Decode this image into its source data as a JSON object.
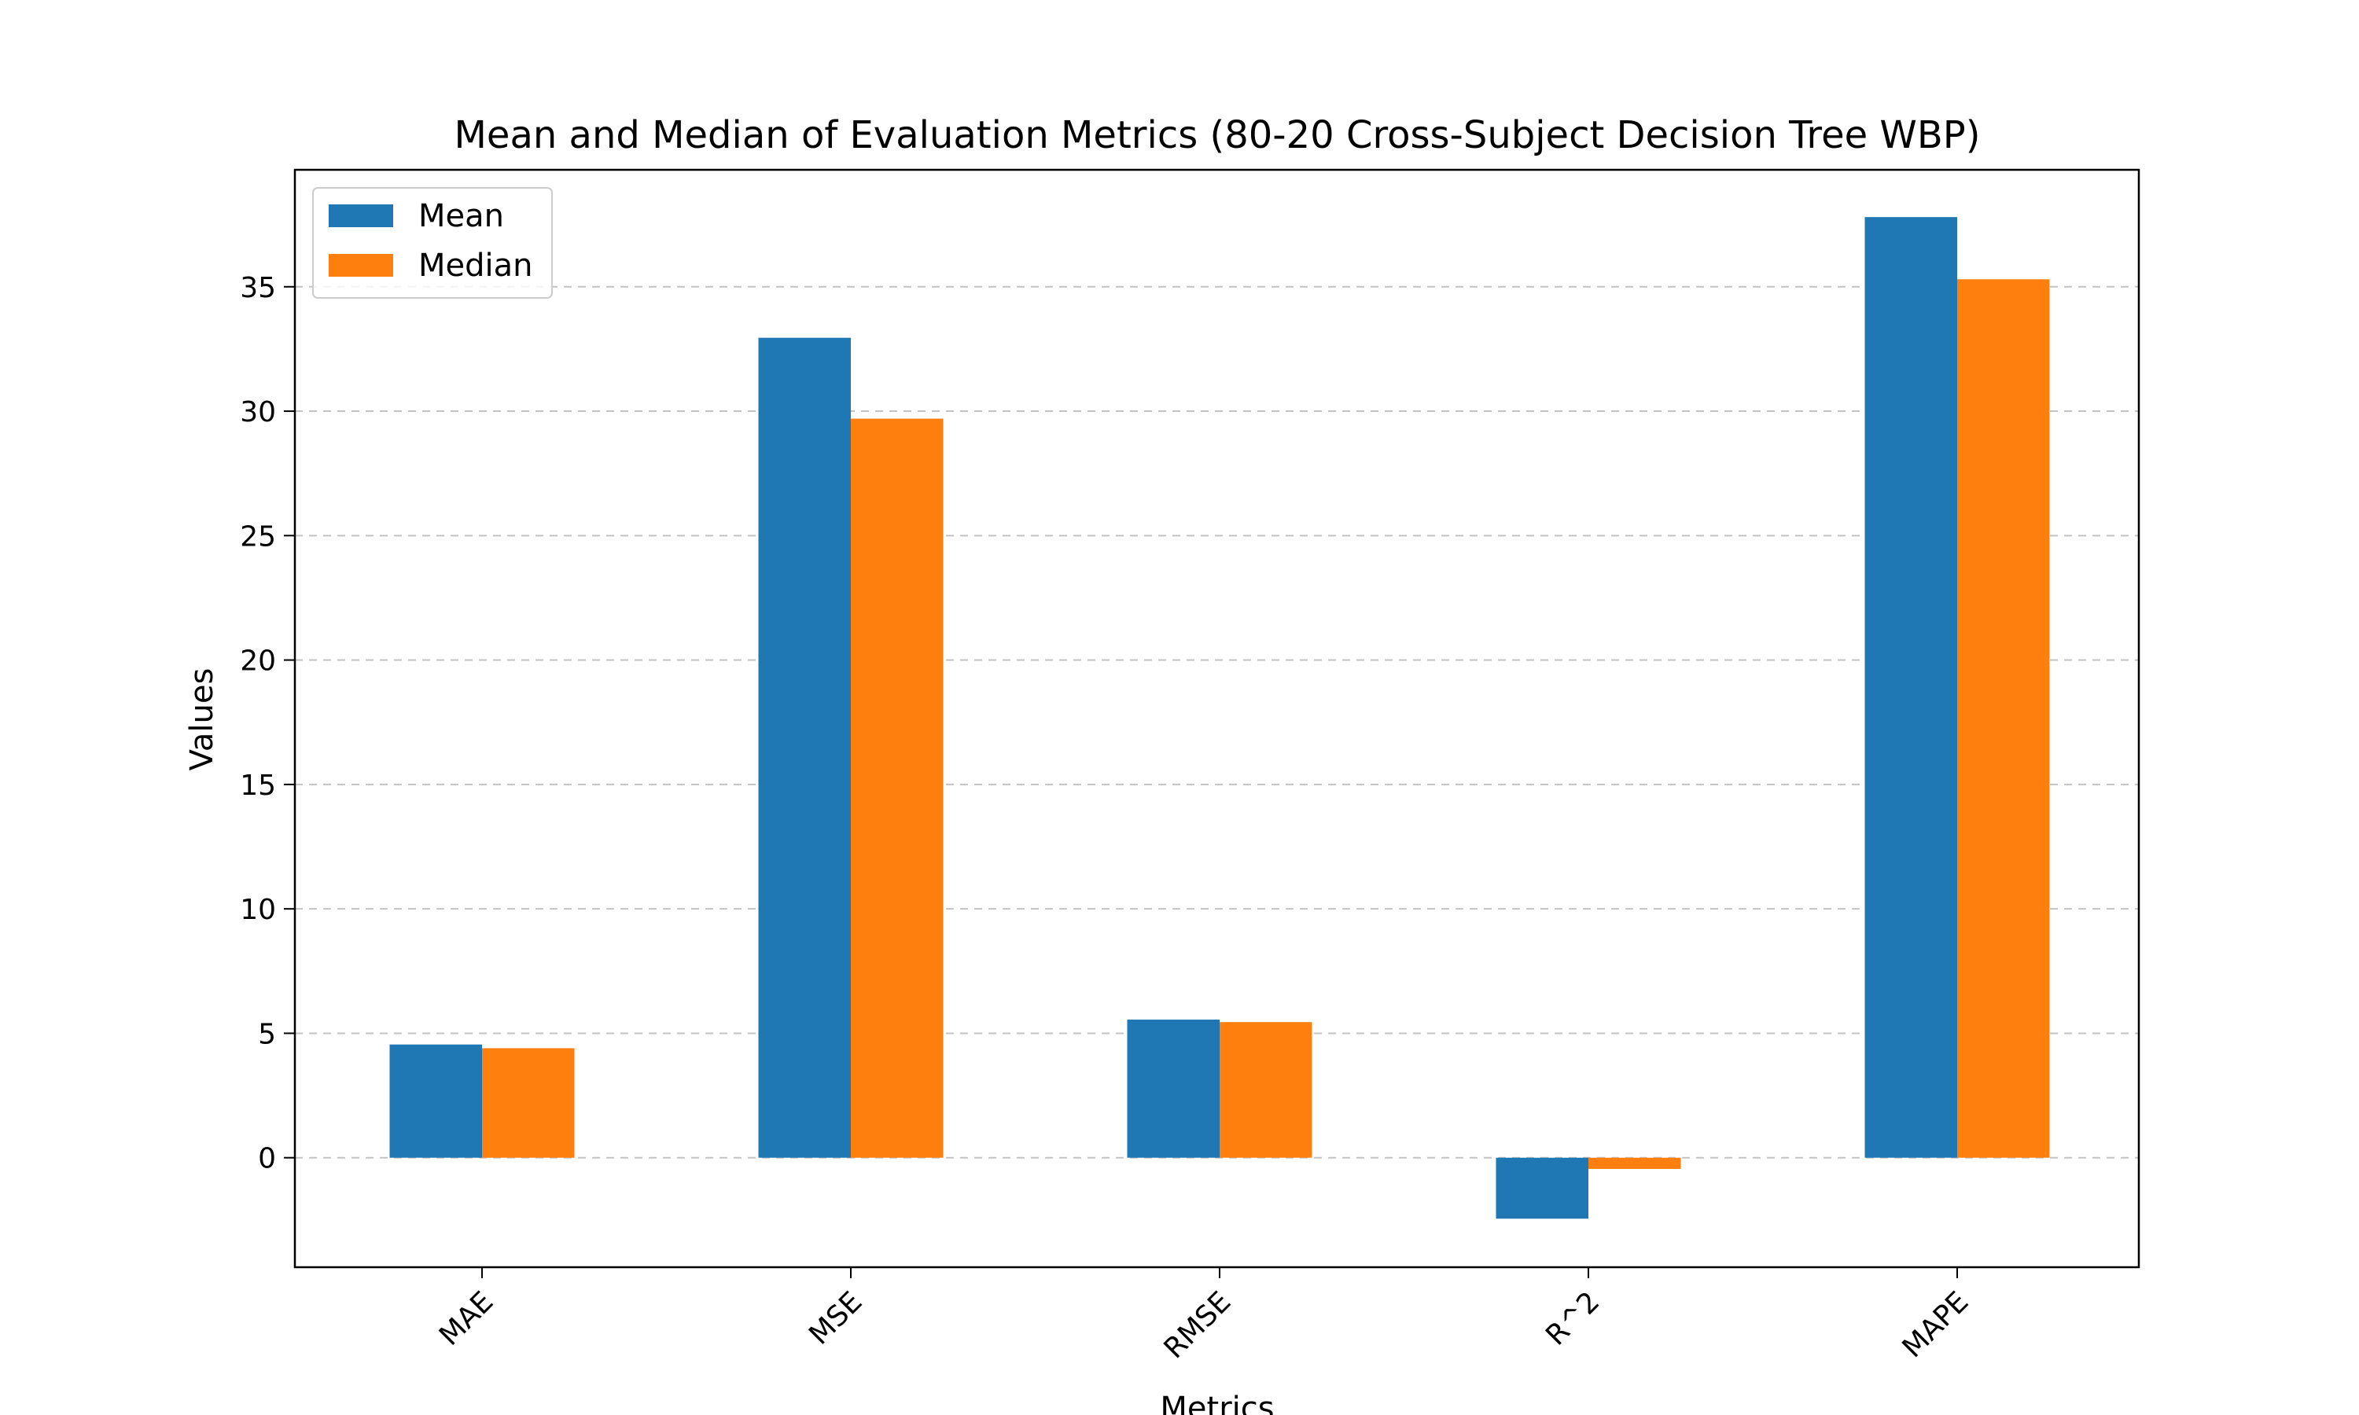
{
  "chart_data": {
    "type": "bar",
    "title": "Mean and Median of Evaluation Metrics (80-20 Cross-Subject Decision Tree WBP)",
    "xlabel": "Metrics",
    "ylabel": "Values",
    "categories": [
      "MAE",
      "MSE",
      "RMSE",
      "R^2",
      "MAPE"
    ],
    "series": [
      {
        "name": "Mean",
        "color": "#1f77b4",
        "values": [
          4.55,
          32.95,
          5.55,
          -2.45,
          37.8
        ]
      },
      {
        "name": "Median",
        "color": "#ff7f0e",
        "values": [
          4.4,
          29.7,
          5.45,
          -0.45,
          35.3
        ]
      }
    ],
    "ylim": [
      -4.4,
      39.7
    ],
    "yticks": [
      0,
      5,
      10,
      15,
      20,
      25,
      30,
      35
    ],
    "grid": "y-dashed",
    "legend": "top-left"
  }
}
